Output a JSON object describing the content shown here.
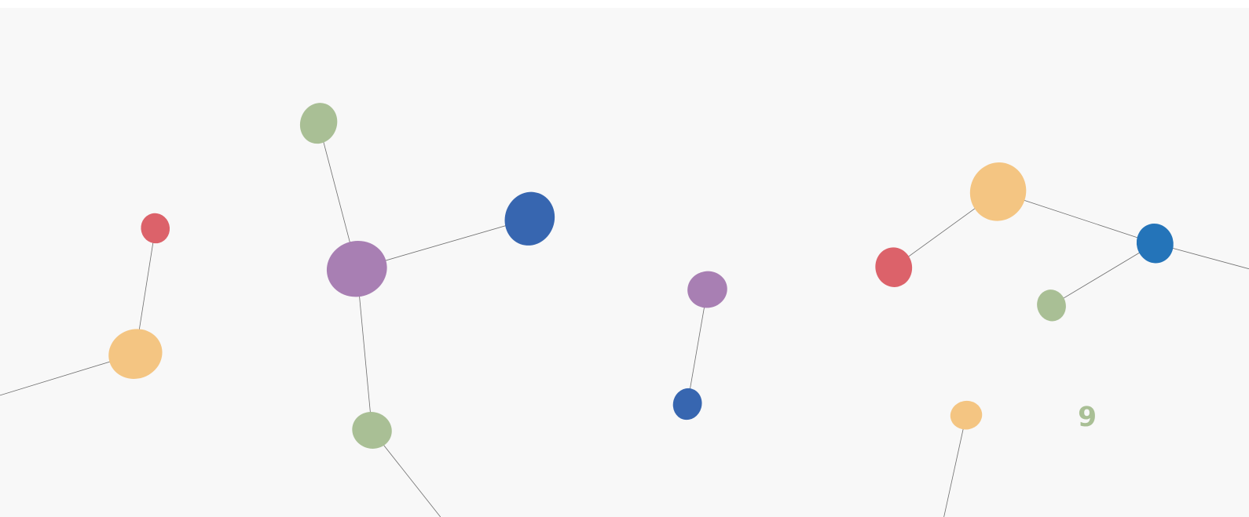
{
  "badge": {
    "text": "9"
  }
}
